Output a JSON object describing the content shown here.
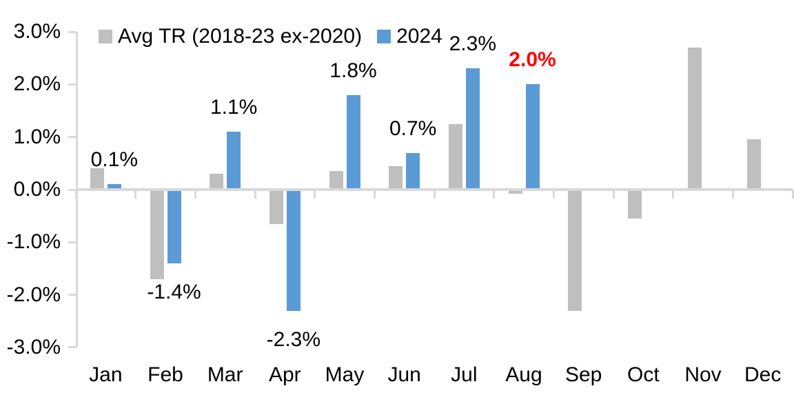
{
  "chart_data": {
    "type": "bar",
    "title": "",
    "categories": [
      "Jan",
      "Feb",
      "Mar",
      "Apr",
      "May",
      "Jun",
      "Jul",
      "Aug",
      "Sep",
      "Oct",
      "Nov",
      "Dec"
    ],
    "series": [
      {
        "name": "Avg TR (2018-23 ex-2020)",
        "color": "#bfbfbf",
        "values": [
          0.4,
          -1.7,
          0.3,
          -0.65,
          0.35,
          0.45,
          1.25,
          -0.08,
          -2.3,
          -0.55,
          2.7,
          0.95
        ]
      },
      {
        "name": "2024",
        "color": "#5b9bd5",
        "values": [
          0.1,
          -1.4,
          1.1,
          -2.3,
          1.8,
          0.7,
          2.3,
          2.0,
          null,
          null,
          null,
          null
        ],
        "data_labels": [
          {
            "text": "0.1%",
            "emphasis": false
          },
          {
            "text": "-1.4%",
            "emphasis": false
          },
          {
            "text": "1.1%",
            "emphasis": false
          },
          {
            "text": "-2.3%",
            "emphasis": false
          },
          {
            "text": "1.8%",
            "emphasis": false
          },
          {
            "text": "0.7%",
            "emphasis": false
          },
          {
            "text": "2.3%",
            "emphasis": false
          },
          {
            "text": "2.0%",
            "emphasis": true
          },
          null,
          null,
          null,
          null
        ]
      }
    ],
    "y_axis": {
      "min": -3,
      "max": 3,
      "tick_labels": [
        "3.0%",
        "2.0%",
        "1.0%",
        "0.0%",
        "-1.0%",
        "-2.0%",
        "-3.0%"
      ],
      "unit": "%"
    },
    "x_axis": {
      "label": ""
    },
    "grid": false,
    "legend": {
      "position": "top",
      "entries": [
        {
          "label": "Avg TR (2018-23 ex-2020)",
          "color": "#bfbfbf"
        },
        {
          "label": "2024",
          "color": "#5b9bd5"
        }
      ]
    },
    "colors": {
      "axis": "#d9d9d9",
      "text": "#000000",
      "emphasis": "#ff0000"
    }
  }
}
